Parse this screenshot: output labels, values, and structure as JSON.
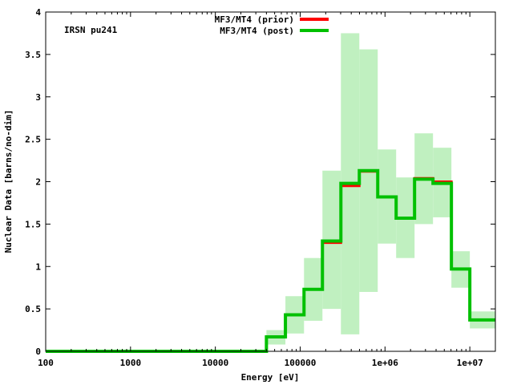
{
  "chart_data": {
    "type": "line",
    "title": "",
    "annotation": "IRSN pu241",
    "xlabel": "Energy [eV]",
    "ylabel": "Nuclear Data [barns/no-dim]",
    "x_scale": "log",
    "xlim": [
      100,
      20000000
    ],
    "ylim": [
      0,
      4
    ],
    "x_ticks": [
      {
        "value": 100,
        "label": "100"
      },
      {
        "value": 1000,
        "label": "1000"
      },
      {
        "value": 10000,
        "label": "10000"
      },
      {
        "value": 100000,
        "label": "100000"
      },
      {
        "value": 1000000,
        "label": "1e+06"
      },
      {
        "value": 10000000,
        "label": "1e+07"
      }
    ],
    "y_ticks": [
      {
        "value": 0,
        "label": "0"
      },
      {
        "value": 0.5,
        "label": "0.5"
      },
      {
        "value": 1,
        "label": "1"
      },
      {
        "value": 1.5,
        "label": "1.5"
      },
      {
        "value": 2,
        "label": "2"
      },
      {
        "value": 2.5,
        "label": "2.5"
      },
      {
        "value": 3,
        "label": "3"
      },
      {
        "value": 3.5,
        "label": "3.5"
      },
      {
        "value": 4,
        "label": "4"
      }
    ],
    "bin_edges": [
      100,
      40000,
      67000,
      111000,
      183000,
      302000,
      498000,
      821000,
      1353000,
      2231000,
      3679000,
      6065000,
      10000000,
      20000000
    ],
    "series": [
      {
        "name": "MF3/MT4 (prior)",
        "color": "#ff0000",
        "values": [
          0.0,
          0.17,
          0.43,
          0.73,
          1.28,
          1.95,
          2.12,
          1.82,
          1.57,
          2.04,
          2.0,
          0.97,
          0.37
        ]
      },
      {
        "name": "MF3/MT4 (post)",
        "color": "#00c000",
        "values": [
          0.0,
          0.17,
          0.43,
          0.73,
          1.3,
          1.98,
          2.13,
          1.82,
          1.57,
          2.03,
          1.98,
          0.97,
          0.37
        ]
      }
    ],
    "uncertainty_band": {
      "color": "#c0f0c0",
      "lower": [
        0.0,
        0.08,
        0.21,
        0.36,
        0.5,
        0.2,
        0.7,
        1.27,
        1.1,
        1.5,
        1.58,
        0.75,
        0.27
      ],
      "upper": [
        0.0,
        0.25,
        0.65,
        1.1,
        2.13,
        3.75,
        3.56,
        2.38,
        2.05,
        2.57,
        2.4,
        1.18,
        0.47
      ]
    },
    "legend_position": "top-center",
    "grid": false
  }
}
